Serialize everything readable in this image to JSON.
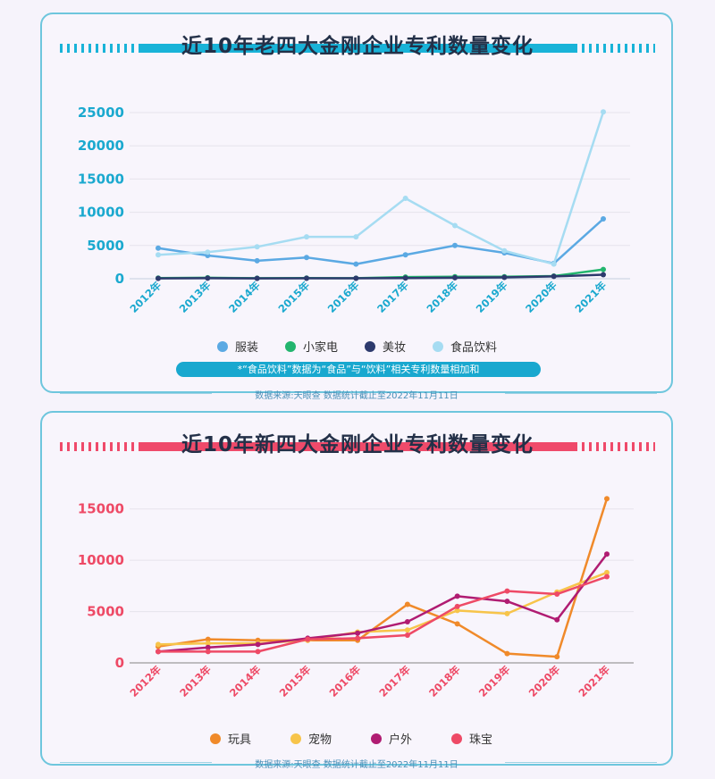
{
  "chart_data": [
    {
      "type": "line",
      "title": "近10年老四大金刚企业专利数量变化",
      "categories": [
        "2012年",
        "2013年",
        "2014年",
        "2015年",
        "2016年",
        "2017年",
        "2018年",
        "2019年",
        "2020年",
        "2021年"
      ],
      "ylim": [
        0,
        25000
      ],
      "yticks": [
        0,
        5000,
        10000,
        15000,
        20000,
        25000
      ],
      "grid": true,
      "legend_position": "bottom",
      "series": [
        {
          "name": "服装",
          "color": "#5ba9e3",
          "values": [
            4600,
            3500,
            2700,
            3200,
            2200,
            3600,
            5000,
            3900,
            2300,
            9000
          ]
        },
        {
          "name": "小家电",
          "color": "#23b56e",
          "values": [
            100,
            150,
            80,
            100,
            80,
            250,
            300,
            300,
            400,
            1400
          ]
        },
        {
          "name": "美妆",
          "color": "#2d3a6d",
          "values": [
            50,
            80,
            50,
            60,
            60,
            100,
            150,
            200,
            350,
            600
          ]
        },
        {
          "name": "食品饮料",
          "color": "#a6dcf2",
          "values": [
            3600,
            4000,
            4800,
            6300,
            6300,
            12100,
            8000,
            4200,
            2200,
            25100
          ]
        }
      ],
      "note": "*“食品饮料”数据为“食品”与“饮料”相关专利数量相加和",
      "source": "数据来源:天眼查 数据统计截止至2022年11月11日"
    },
    {
      "type": "line",
      "title": "近10年新四大金刚企业专利数量变化",
      "categories": [
        "2012年",
        "2013年",
        "2014年",
        "2015年",
        "2016年",
        "2017年",
        "2018年",
        "2019年",
        "2020年",
        "2021年"
      ],
      "ylim": [
        0,
        17500
      ],
      "yticks": [
        0,
        5000,
        10000,
        15000
      ],
      "grid": true,
      "legend_position": "bottom",
      "series": [
        {
          "name": "玩具",
          "color": "#f08a2a",
          "values": [
            1600,
            2300,
            2200,
            2200,
            2200,
            5700,
            3800,
            900,
            600,
            16000
          ]
        },
        {
          "name": "宠物",
          "color": "#f7c44a",
          "values": [
            1800,
            1900,
            1900,
            2200,
            3000,
            3200,
            5100,
            4800,
            6900,
            8800
          ]
        },
        {
          "name": "户外",
          "color": "#b01c72",
          "values": [
            1100,
            1500,
            1800,
            2400,
            2900,
            4000,
            6500,
            6000,
            4200,
            10600
          ]
        },
        {
          "name": "珠宝",
          "color": "#ee4a66",
          "values": [
            1100,
            1100,
            1100,
            2300,
            2400,
            2700,
            5500,
            7000,
            6700,
            8400
          ]
        }
      ],
      "source": "数据来源:天眼查 数据统计截止至2022年11月11日"
    }
  ]
}
